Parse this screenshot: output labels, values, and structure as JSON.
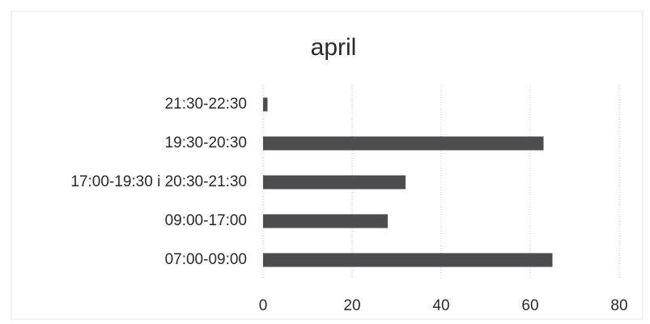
{
  "chart_data": {
    "type": "barh",
    "title": "april",
    "categories": [
      "21:30-22:30",
      "19:30-20:30",
      "17:00-19:30 i 20:30-21:30",
      "09:00-17:00",
      "07:00-09:00"
    ],
    "values": [
      1,
      63,
      32,
      28,
      65
    ],
    "color": "#4d4d4f",
    "xlim": [
      0,
      80
    ],
    "xticks": [
      0,
      20,
      40,
      60,
      80
    ],
    "grid": true
  }
}
